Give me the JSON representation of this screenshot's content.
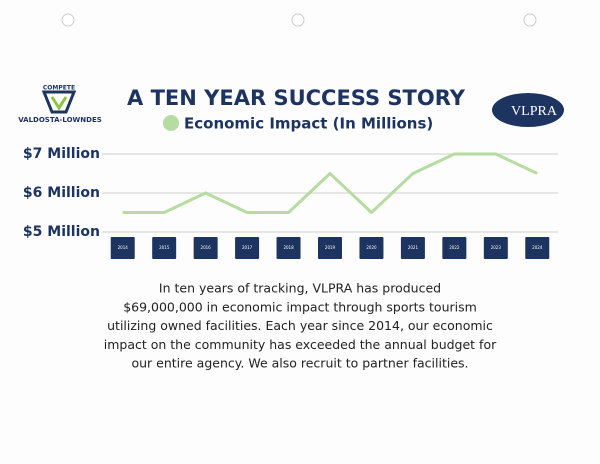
{
  "chart_data": {
    "type": "line",
    "title": "A TEN YEAR SUCCESS STORY",
    "categories": [
      "2014",
      "2015",
      "2016",
      "2017",
      "2018",
      "2019",
      "2020",
      "2021",
      "2022",
      "2023",
      "2024"
    ],
    "series": [
      {
        "name": "Economic Impact (In Millions)",
        "color": "#b6dca2",
        "values": [
          5.5,
          5.5,
          6,
          5.5,
          5.5,
          6.5,
          5.5,
          6.5,
          7,
          7,
          6.5
        ]
      }
    ],
    "ylim": [
      5,
      7
    ],
    "yticks": [
      {
        "value": 5,
        "label": "$5 Million"
      },
      {
        "value": 6,
        "label": "$6 Million"
      },
      {
        "value": 7,
        "label": "$7 Million"
      }
    ],
    "grid": true
  },
  "logos": {
    "left_top": "COMPETE",
    "left_bottom": "VALDOSTA-LOWNDES",
    "right": "VLPRA"
  },
  "body_text": [
    "In ten years of tracking, VLPRA has produced",
    "$69,000,000 in economic impact through sports tourism",
    "utilizing owned facilities. Each year since 2014, our economic",
    "impact on the community has exceeded the annual budget for",
    "our entire agency. We also recruit to partner facilities."
  ]
}
